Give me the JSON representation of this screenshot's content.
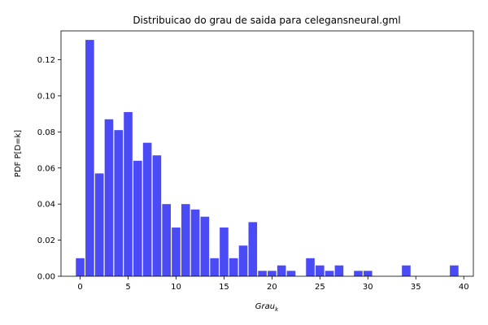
{
  "chart_data": {
    "type": "bar",
    "title": "Distribuicao do grau de saida para celegansneural.gml",
    "xlabel": {
      "base": "Grau",
      "subscript": "k"
    },
    "ylabel": "PDF P[D=k]",
    "xlim": [
      -2,
      41
    ],
    "ylim": [
      0,
      0.136
    ],
    "xticks": [
      0,
      5,
      10,
      15,
      20,
      25,
      30,
      35,
      40
    ],
    "yticks": [
      0.0,
      0.02,
      0.04,
      0.06,
      0.08,
      0.1,
      0.12
    ],
    "ytick_labels": [
      "0.00",
      "0.02",
      "0.04",
      "0.06",
      "0.08",
      "0.10",
      "0.12"
    ],
    "bar_color": "#4b4bf5",
    "bar_width": 0.9,
    "x": [
      0,
      1,
      2,
      3,
      4,
      5,
      6,
      7,
      8,
      9,
      10,
      11,
      12,
      13,
      14,
      15,
      16,
      17,
      18,
      19,
      20,
      21,
      22,
      24,
      25,
      26,
      27,
      29,
      30,
      34,
      39
    ],
    "values": [
      0.01,
      0.131,
      0.057,
      0.087,
      0.081,
      0.091,
      0.064,
      0.074,
      0.067,
      0.04,
      0.027,
      0.04,
      0.037,
      0.033,
      0.01,
      0.027,
      0.01,
      0.017,
      0.03,
      0.003,
      0.003,
      0.006,
      0.003,
      0.01,
      0.006,
      0.003,
      0.006,
      0.003,
      0.003,
      0.006,
      0.006
    ]
  }
}
